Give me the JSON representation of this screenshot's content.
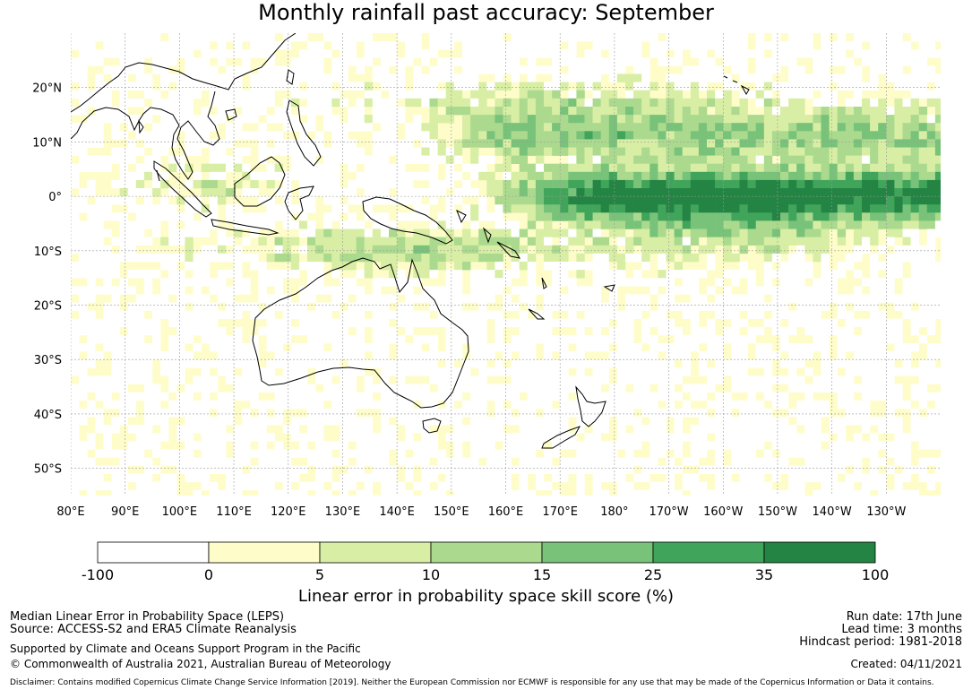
{
  "title": "Monthly rainfall past accuracy: September",
  "map": {
    "lon_ticks": [
      "80°E",
      "90°E",
      "100°E",
      "110°E",
      "120°E",
      "130°E",
      "140°E",
      "150°E",
      "160°E",
      "170°E",
      "180°",
      "170°W",
      "160°W",
      "150°W",
      "140°W",
      "130°W"
    ],
    "lat_ticks": [
      "20°N",
      "10°N",
      "0°",
      "10°S",
      "20°S",
      "30°S",
      "40°S",
      "50°S"
    ],
    "lon_range": [
      80,
      240
    ],
    "lat_range": [
      -55,
      30
    ]
  },
  "colorbar": {
    "labels": [
      "-100",
      "0",
      "5",
      "10",
      "15",
      "25",
      "35",
      "100"
    ],
    "colors": [
      "#ffffff",
      "#fefdca",
      "#d8eea4",
      "#abda8f",
      "#78c27a",
      "#40a55a",
      "#238444"
    ],
    "title": "Linear error in probability space skill score (%)"
  },
  "info": {
    "left_line1": "Median Linear Error in Probability Space (LEPS)",
    "left_line2": "Source: ACCESS-S2 and ERA5 Climate Reanalysis",
    "left_line3": "Supported by Climate and Oceans Support Program in the Pacific",
    "left_line4": "© Commonwealth of Australia 2021, Australian Bureau of Meteorology",
    "right_line1": "Run date: 17th June",
    "right_line2": "Lead time: 3 months",
    "right_line3": "Hindcast period: 1981-2018",
    "right_line4": "Created: 04/11/2021",
    "disclaimer": "Disclaimer: Contains modified Copernicus Climate Change Service Information [2019]. Neither the European Commission nor ECMWF is responsible for any use that may be made of the Copernicus Information or Data it contains."
  }
}
